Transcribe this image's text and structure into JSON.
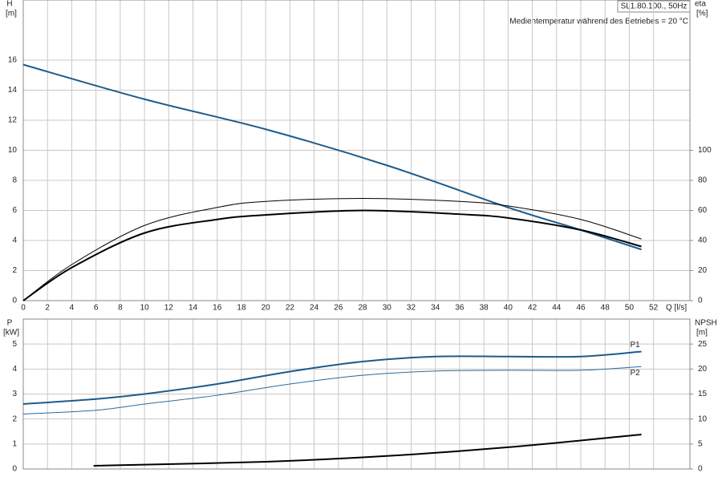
{
  "chart_data": [
    {
      "type": "line",
      "title": "SL1.80.100., 50Hz",
      "subtitle": "Medientemperatur während des Betriebes = 20 °C",
      "y_label": "H",
      "y_unit": "[m]",
      "y2_label": "eta",
      "y2_unit": "[%]",
      "x_label": "Q [l/s]",
      "xlim": [
        0,
        55
      ],
      "xticks": [
        0,
        2,
        4,
        6,
        8,
        10,
        12,
        14,
        16,
        18,
        20,
        22,
        24,
        26,
        28,
        30,
        32,
        34,
        36,
        38,
        40,
        42,
        44,
        46,
        48,
        50,
        52
      ],
      "ylim": [
        0,
        20
      ],
      "yticks": [
        0,
        2,
        4,
        6,
        8,
        10,
        12,
        14,
        16
      ],
      "y2lim": [
        0,
        200
      ],
      "y2ticks": [
        0,
        20,
        40,
        60,
        80,
        100
      ],
      "grid": true,
      "series": [
        {
          "color": "#1d5b8c",
          "linewidth": 2,
          "x": [
            0,
            10,
            20,
            30,
            40,
            46,
            51
          ],
          "values": [
            15.7,
            13.4,
            11.4,
            9.0,
            6.2,
            4.7,
            3.4
          ]
        },
        {
          "color": "#000000",
          "linewidth": 1,
          "axis": "y2",
          "x": [
            0,
            4,
            10,
            16,
            20,
            28,
            36,
            40,
            46,
            51
          ],
          "values": [
            0,
            24,
            50,
            62,
            66,
            68,
            66,
            63,
            54,
            41
          ]
        },
        {
          "color": "#000000",
          "linewidth": 2,
          "axis": "y2",
          "x": [
            0,
            4,
            10,
            16,
            20,
            28,
            36,
            40,
            46,
            51
          ],
          "values": [
            0,
            22,
            45,
            54,
            57,
            60,
            57.5,
            55,
            47,
            36
          ]
        }
      ]
    },
    {
      "type": "line",
      "y_label": "P",
      "y_unit": "[kW]",
      "y2_label": "NPSH",
      "y2_unit": "[m]",
      "xlim": [
        0,
        55
      ],
      "ylim": [
        0,
        6
      ],
      "yticks": [
        0,
        1,
        2,
        3,
        4,
        5
      ],
      "y2lim": [
        0,
        30
      ],
      "y2ticks": [
        0,
        5,
        10,
        15,
        20,
        25
      ],
      "grid": true,
      "series": [
        {
          "label": "P1",
          "color": "#1d5b8c",
          "linewidth": 2,
          "x": [
            0,
            6,
            10,
            16,
            22,
            28,
            34,
            40,
            46,
            51
          ],
          "values": [
            2.6,
            2.8,
            3.0,
            3.4,
            3.9,
            4.3,
            4.5,
            4.5,
            4.5,
            4.7
          ]
        },
        {
          "label": "P2",
          "color": "#2a6a9a",
          "linewidth": 1,
          "x": [
            0,
            6,
            10,
            16,
            22,
            28,
            34,
            40,
            46,
            51
          ],
          "values": [
            2.2,
            2.35,
            2.6,
            2.95,
            3.4,
            3.75,
            3.92,
            3.95,
            3.95,
            4.1
          ]
        },
        {
          "color": "#000000",
          "linewidth": 2,
          "axis": "y2",
          "x": [
            5.8,
            20,
            30,
            40,
            51
          ],
          "values": [
            0.65,
            1.45,
            2.6,
            4.35,
            6.9
          ]
        }
      ]
    }
  ]
}
